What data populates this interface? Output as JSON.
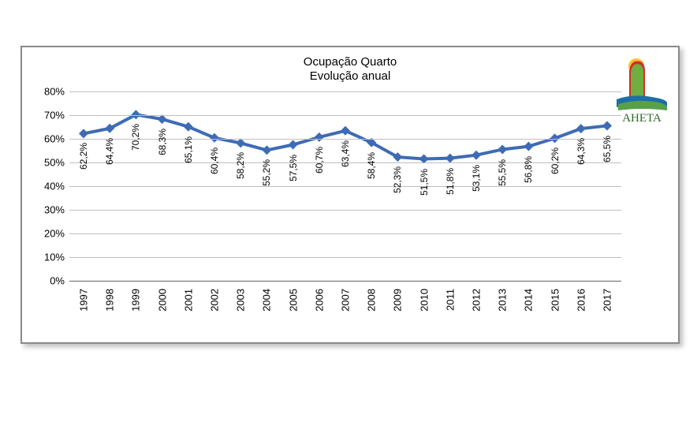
{
  "chart": {
    "type": "line",
    "title_line1": "Ocupação Quarto",
    "title_line2": "Evolução anual",
    "title_fontsize": 15,
    "logo_text": "AHETA",
    "background_color": "#ffffff",
    "frame_border_color": "#8a8a8a",
    "grid_color": "#bfbfbf",
    "axis_color": "#666666",
    "line_color": "#3e6bb5",
    "line_width": 4,
    "marker_type": "diamond",
    "marker_size": 6,
    "marker_color": "#3e6bb5",
    "y_axis": {
      "min": 0,
      "max": 80,
      "ticks": [
        0,
        10,
        20,
        30,
        40,
        50,
        60,
        70,
        80
      ],
      "tick_labels": [
        "0%",
        "10%",
        "20%",
        "30%",
        "40%",
        "50%",
        "60%",
        "70%",
        "80%"
      ],
      "label_fontsize": 13
    },
    "x_categories": [
      "1997",
      "1998",
      "1999",
      "2000",
      "2001",
      "2002",
      "2003",
      "2004",
      "2005",
      "2006",
      "2007",
      "2008",
      "2009",
      "2010",
      "2011",
      "2012",
      "2013",
      "2014",
      "2015",
      "2016",
      "2017"
    ],
    "values": [
      62.2,
      64.4,
      70.2,
      68.3,
      65.1,
      60.4,
      58.2,
      55.2,
      57.5,
      60.7,
      63.4,
      58.4,
      52.3,
      51.5,
      51.8,
      53.1,
      55.5,
      56.8,
      60.2,
      64.3,
      65.5
    ],
    "value_labels": [
      "62,2%",
      "64,4%",
      "70,2%",
      "68,3%",
      "65,1%",
      "60,4%",
      "58,2%",
      "55,2%",
      "57,5%",
      "60,7%",
      "63,4%",
      "58,4%",
      "52,3%",
      "51,5%",
      "51,8%",
      "53,1%",
      "55,5%",
      "56,8%",
      "60,2%",
      "64,3%",
      "65,5%"
    ],
    "value_label_fontsize": 12,
    "x_label_fontsize": 13
  }
}
